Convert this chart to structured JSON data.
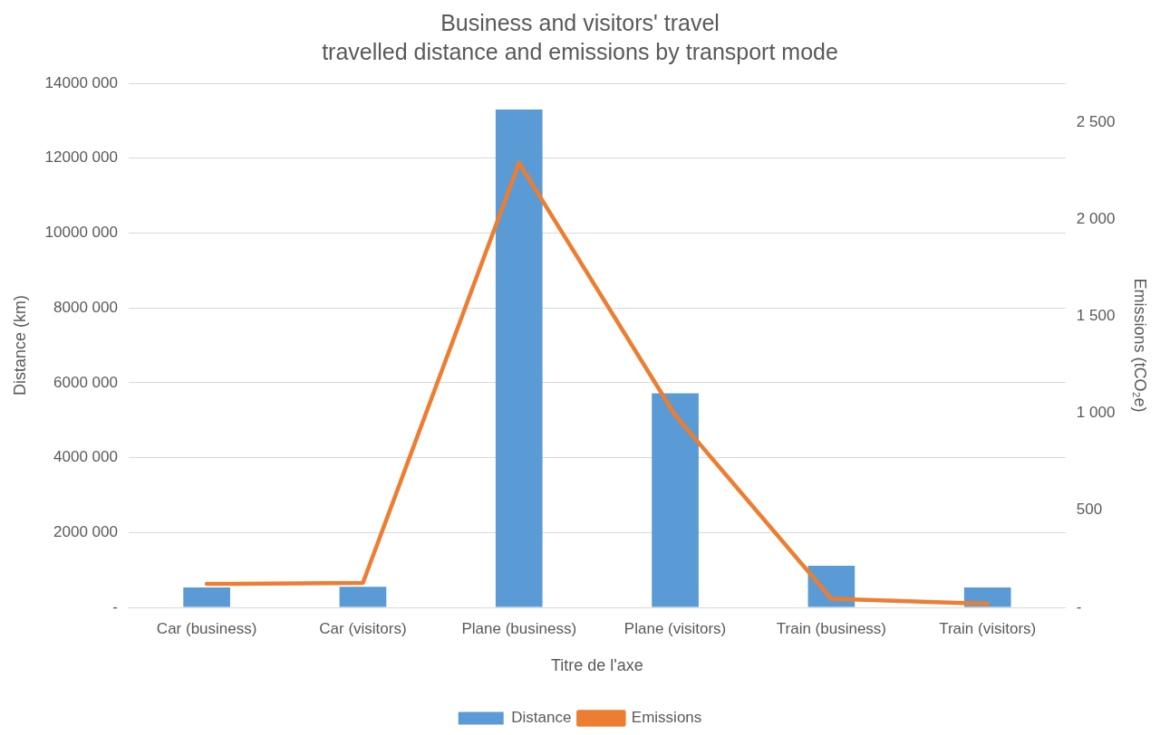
{
  "chart_data": {
    "type": "bar",
    "title": "Business and visitors' travel",
    "subtitle": "travelled distance and emissions by transport mode",
    "xlabel": "Titre de l'axe",
    "ylabel": "Distance (km)",
    "y2label": "Emissions (tCO₂e)",
    "categories": [
      "Car (business)",
      "Car (visitors)",
      "Plane (business)",
      "Plane (visitors)",
      "Train (business)",
      "Train (visitors)"
    ],
    "series": [
      {
        "name": "Distance",
        "color": "#5b9bd5",
        "values": [
          530000,
          550000,
          13300000,
          5720000,
          1110000,
          530000
        ]
      },
      {
        "name": "Emissions",
        "type": "line",
        "axis": "y2",
        "color": "#ed7d31",
        "values": [
          121,
          126,
          2290,
          990,
          44,
          19
        ]
      }
    ],
    "ylim": [
      0,
      14000000
    ],
    "yticks": [
      {
        "value": 0,
        "label": "-"
      },
      {
        "value": 2000000,
        "label": "2000 000"
      },
      {
        "value": 4000000,
        "label": "4000 000"
      },
      {
        "value": 6000000,
        "label": "6000 000"
      },
      {
        "value": 8000000,
        "label": "8000 000"
      },
      {
        "value": 10000000,
        "label": "10000 000"
      },
      {
        "value": 12000000,
        "label": "12000 000"
      },
      {
        "value": 14000000,
        "label": "14000 000"
      }
    ],
    "y2lim": [
      0,
      2700
    ],
    "y2ticks": [
      {
        "value": 0,
        "label": "-"
      },
      500,
      {
        "value": 1000,
        "label": "1 000"
      },
      {
        "value": 1500,
        "label": "1 500"
      },
      {
        "value": 2000,
        "label": "2 000"
      },
      {
        "value": 2500,
        "label": "2 500"
      }
    ],
    "grid": "y",
    "legend": "bottom",
    "marker": "none",
    "line_style": "solid"
  }
}
